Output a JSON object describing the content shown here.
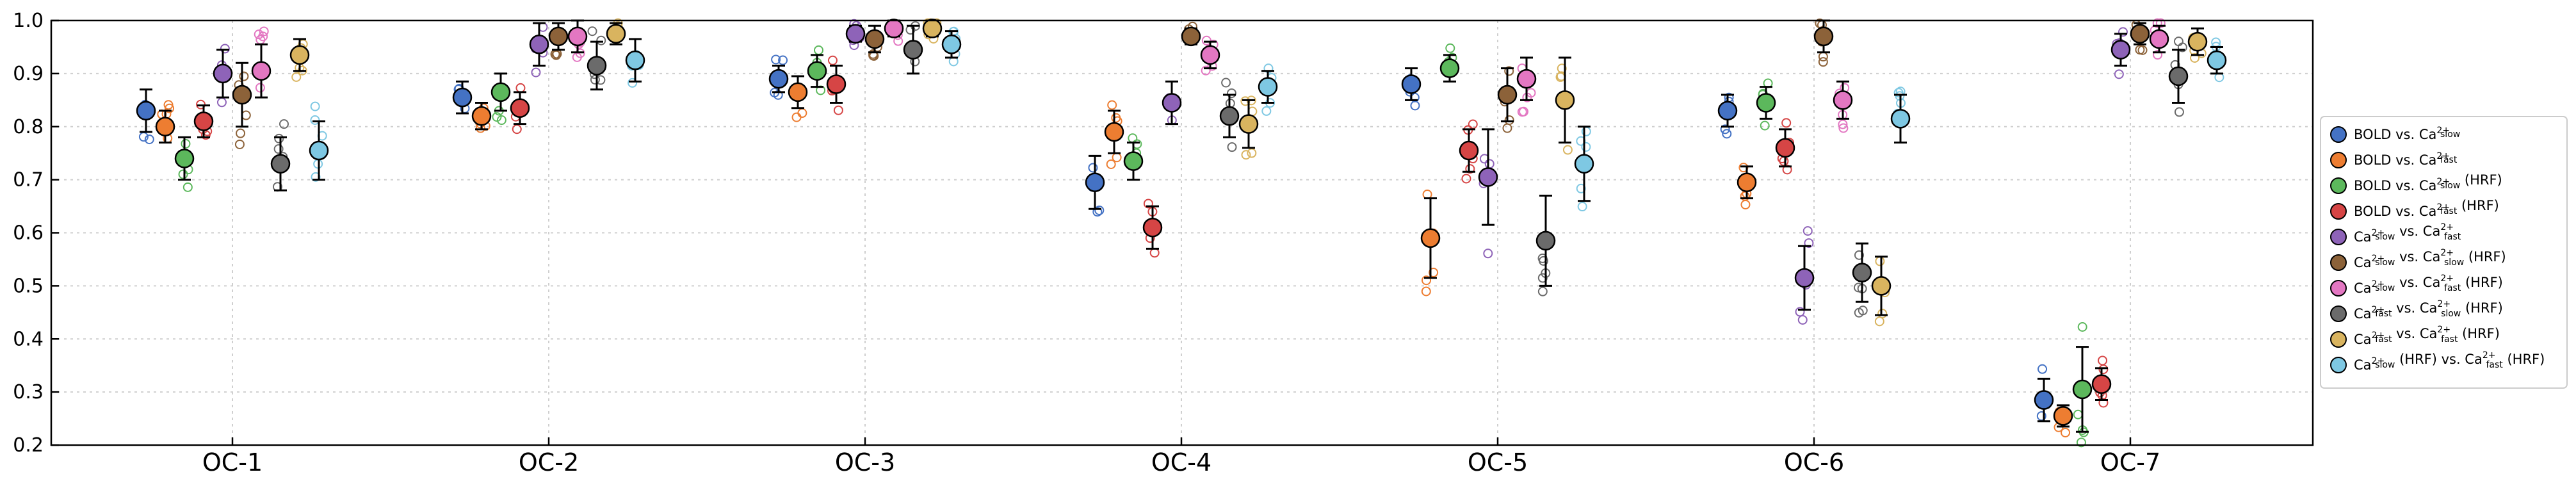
{
  "chart_data": {
    "type": "scatter",
    "ylim": [
      0.2,
      1.0
    ],
    "yticks": [
      0.2,
      0.3,
      0.4,
      0.5,
      0.6,
      0.7,
      0.8,
      0.9,
      1.0
    ],
    "ytick_labels": [
      "0.2",
      "0.3",
      "0.4",
      "0.5",
      "0.6",
      "0.7",
      "0.8",
      "0.9",
      "1.0"
    ],
    "grid": true,
    "legend_position": "right",
    "categories": [
      "OC-1",
      "OC-2",
      "OC-3",
      "OC-4",
      "OC-5",
      "OC-6",
      "OC-7"
    ],
    "series": [
      {
        "legend": {
          "pre": "BOLD vs. Ca",
          "sup": "2+",
          "sub": "slow",
          "post": ""
        },
        "color": "#4472c4",
        "mean": [
          0.83,
          0.855,
          0.89,
          0.695,
          0.88,
          0.83,
          0.285
        ],
        "err": [
          0.04,
          0.03,
          0.025,
          0.05,
          0.03,
          0.03,
          0.04
        ]
      },
      {
        "legend": {
          "pre": "BOLD vs. Ca",
          "sup": "2+",
          "sub": "fast",
          "post": ""
        },
        "color": "#ed7d31",
        "mean": [
          0.8,
          0.82,
          0.865,
          0.79,
          0.59,
          0.695,
          0.255
        ],
        "err": [
          0.03,
          0.025,
          0.03,
          0.04,
          0.075,
          0.03,
          0.02
        ]
      },
      {
        "legend": {
          "pre": "BOLD vs. Ca",
          "sup": "2+",
          "sub": "slow",
          "post": " (HRF)"
        },
        "color": "#5cb85c",
        "mean": [
          0.74,
          0.865,
          0.905,
          0.735,
          0.91,
          0.845,
          0.305
        ],
        "err": [
          0.04,
          0.035,
          0.03,
          0.035,
          0.025,
          0.03,
          0.08
        ]
      },
      {
        "legend": {
          "pre": "BOLD vs. Ca",
          "sup": "2+",
          "sub": "fast",
          "post": " (HRF)"
        },
        "color": "#d64545",
        "mean": [
          0.81,
          0.835,
          0.88,
          0.61,
          0.755,
          0.76,
          0.315
        ],
        "err": [
          0.03,
          0.03,
          0.035,
          0.04,
          0.04,
          0.035,
          0.03
        ]
      },
      {
        "legend": {
          "pre": "Ca",
          "sup": "2+",
          "sub": "slow",
          "post": " vs. Ca",
          "sup2": "2+",
          "sub2": "fast"
        },
        "color": "#8e63b8",
        "mean": [
          0.9,
          0.955,
          0.975,
          0.845,
          0.705,
          0.515,
          0.945
        ],
        "err": [
          0.045,
          0.04,
          0.015,
          0.04,
          0.09,
          0.06,
          0.03
        ]
      },
      {
        "legend": {
          "pre": "Ca",
          "sup": "2+",
          "sub": "slow",
          "post": " vs. Ca",
          "sup2": "2+",
          "sub2": "slow",
          "post2": " (HRF)"
        },
        "color": "#8c6239",
        "mean": [
          0.86,
          0.97,
          0.965,
          0.97,
          0.86,
          0.97,
          0.975
        ],
        "err": [
          0.06,
          0.025,
          0.025,
          0.015,
          0.05,
          0.03,
          0.02
        ]
      },
      {
        "legend": {
          "pre": "Ca",
          "sup": "2+",
          "sub": "slow",
          "post": " vs. Ca",
          "sup2": "2+",
          "sub2": "fast",
          "post2": " (HRF)"
        },
        "color": "#e377c2",
        "mean": [
          0.905,
          0.97,
          0.985,
          0.935,
          0.89,
          0.85,
          0.965
        ],
        "err": [
          0.05,
          0.03,
          0.015,
          0.025,
          0.04,
          0.035,
          0.025
        ]
      },
      {
        "legend": {
          "pre": "Ca",
          "sup": "2+",
          "sub": "fast",
          "post": " vs. Ca",
          "sup2": "2+",
          "sub2": "slow",
          "post2": " (HRF)"
        },
        "color": "#6b6b6b",
        "mean": [
          0.73,
          0.915,
          0.945,
          0.82,
          0.585,
          0.525,
          0.895
        ],
        "err": [
          0.05,
          0.045,
          0.045,
          0.04,
          0.085,
          0.055,
          0.05
        ]
      },
      {
        "legend": {
          "pre": "Ca",
          "sup": "2+",
          "sub": "fast",
          "post": " vs. Ca",
          "sup2": "2+",
          "sub2": "fast",
          "post2": " (HRF)"
        },
        "color": "#d9b45f",
        "mean": [
          0.935,
          0.975,
          0.985,
          0.805,
          0.85,
          0.5,
          0.96
        ],
        "err": [
          0.03,
          0.02,
          0.015,
          0.045,
          0.08,
          0.055,
          0.025
        ]
      },
      {
        "legend": {
          "pre": "Ca",
          "sup": "2+",
          "sub": "slow",
          "post": " (HRF) vs. Ca",
          "sup2": "2+",
          "sub2": "fast",
          "post2": " (HRF)"
        },
        "color": "#7ec8e3",
        "mean": [
          0.755,
          0.925,
          0.955,
          0.875,
          0.73,
          0.815,
          0.925
        ],
        "err": [
          0.055,
          0.04,
          0.025,
          0.03,
          0.07,
          0.045,
          0.025
        ]
      }
    ]
  }
}
